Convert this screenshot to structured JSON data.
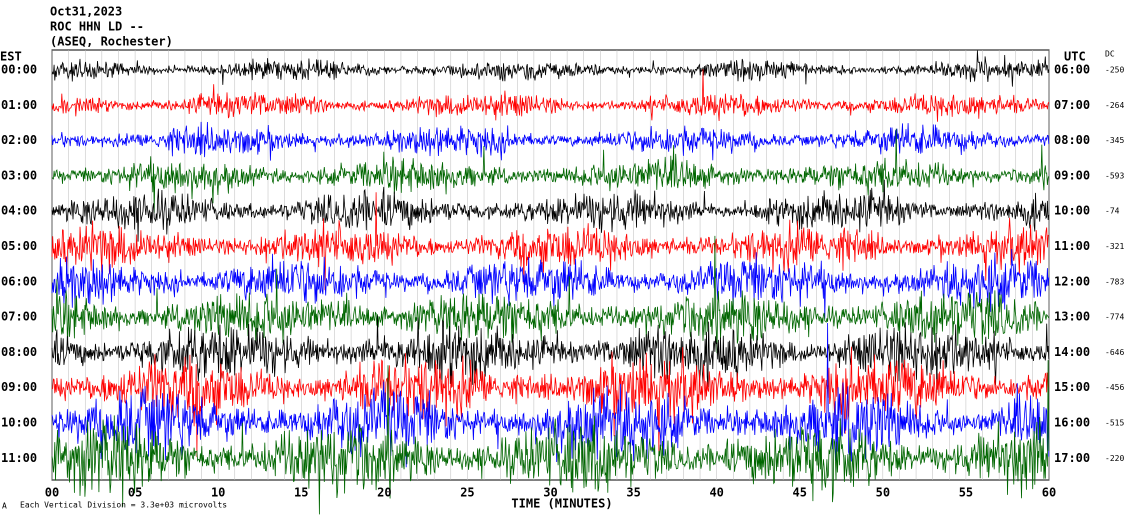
{
  "header": {
    "date": "Oct31,2023",
    "station": "ROC HHN LD --",
    "location": "(ASEQ, Rochester)"
  },
  "left_axis": {
    "title": "EST",
    "labels": [
      "00:00",
      "01:00",
      "02:00",
      "03:00",
      "04:00",
      "05:00",
      "06:00",
      "07:00",
      "08:00",
      "09:00",
      "10:00",
      "11:00"
    ]
  },
  "right_axis": {
    "title": "UTC",
    "labels": [
      "06:00",
      "07:00",
      "08:00",
      "09:00",
      "10:00",
      "11:00",
      "12:00",
      "13:00",
      "14:00",
      "15:00",
      "16:00",
      "17:00"
    ]
  },
  "dc": {
    "title": "DC",
    "values": [
      "-250",
      "-264",
      "-345",
      "-593",
      "-74",
      "-321",
      "-783",
      "-774",
      "-646",
      "-456",
      "-515",
      "-220"
    ]
  },
  "x_axis": {
    "title": "TIME (MINUTES)",
    "labels": [
      "00",
      "05",
      "10",
      "15",
      "20",
      "25",
      "30",
      "35",
      "40",
      "45",
      "50",
      "55",
      "60"
    ]
  },
  "footer": {
    "mark": "A",
    "note": "Each Vertical Division = 3.3e+03 microvolts"
  }
}
